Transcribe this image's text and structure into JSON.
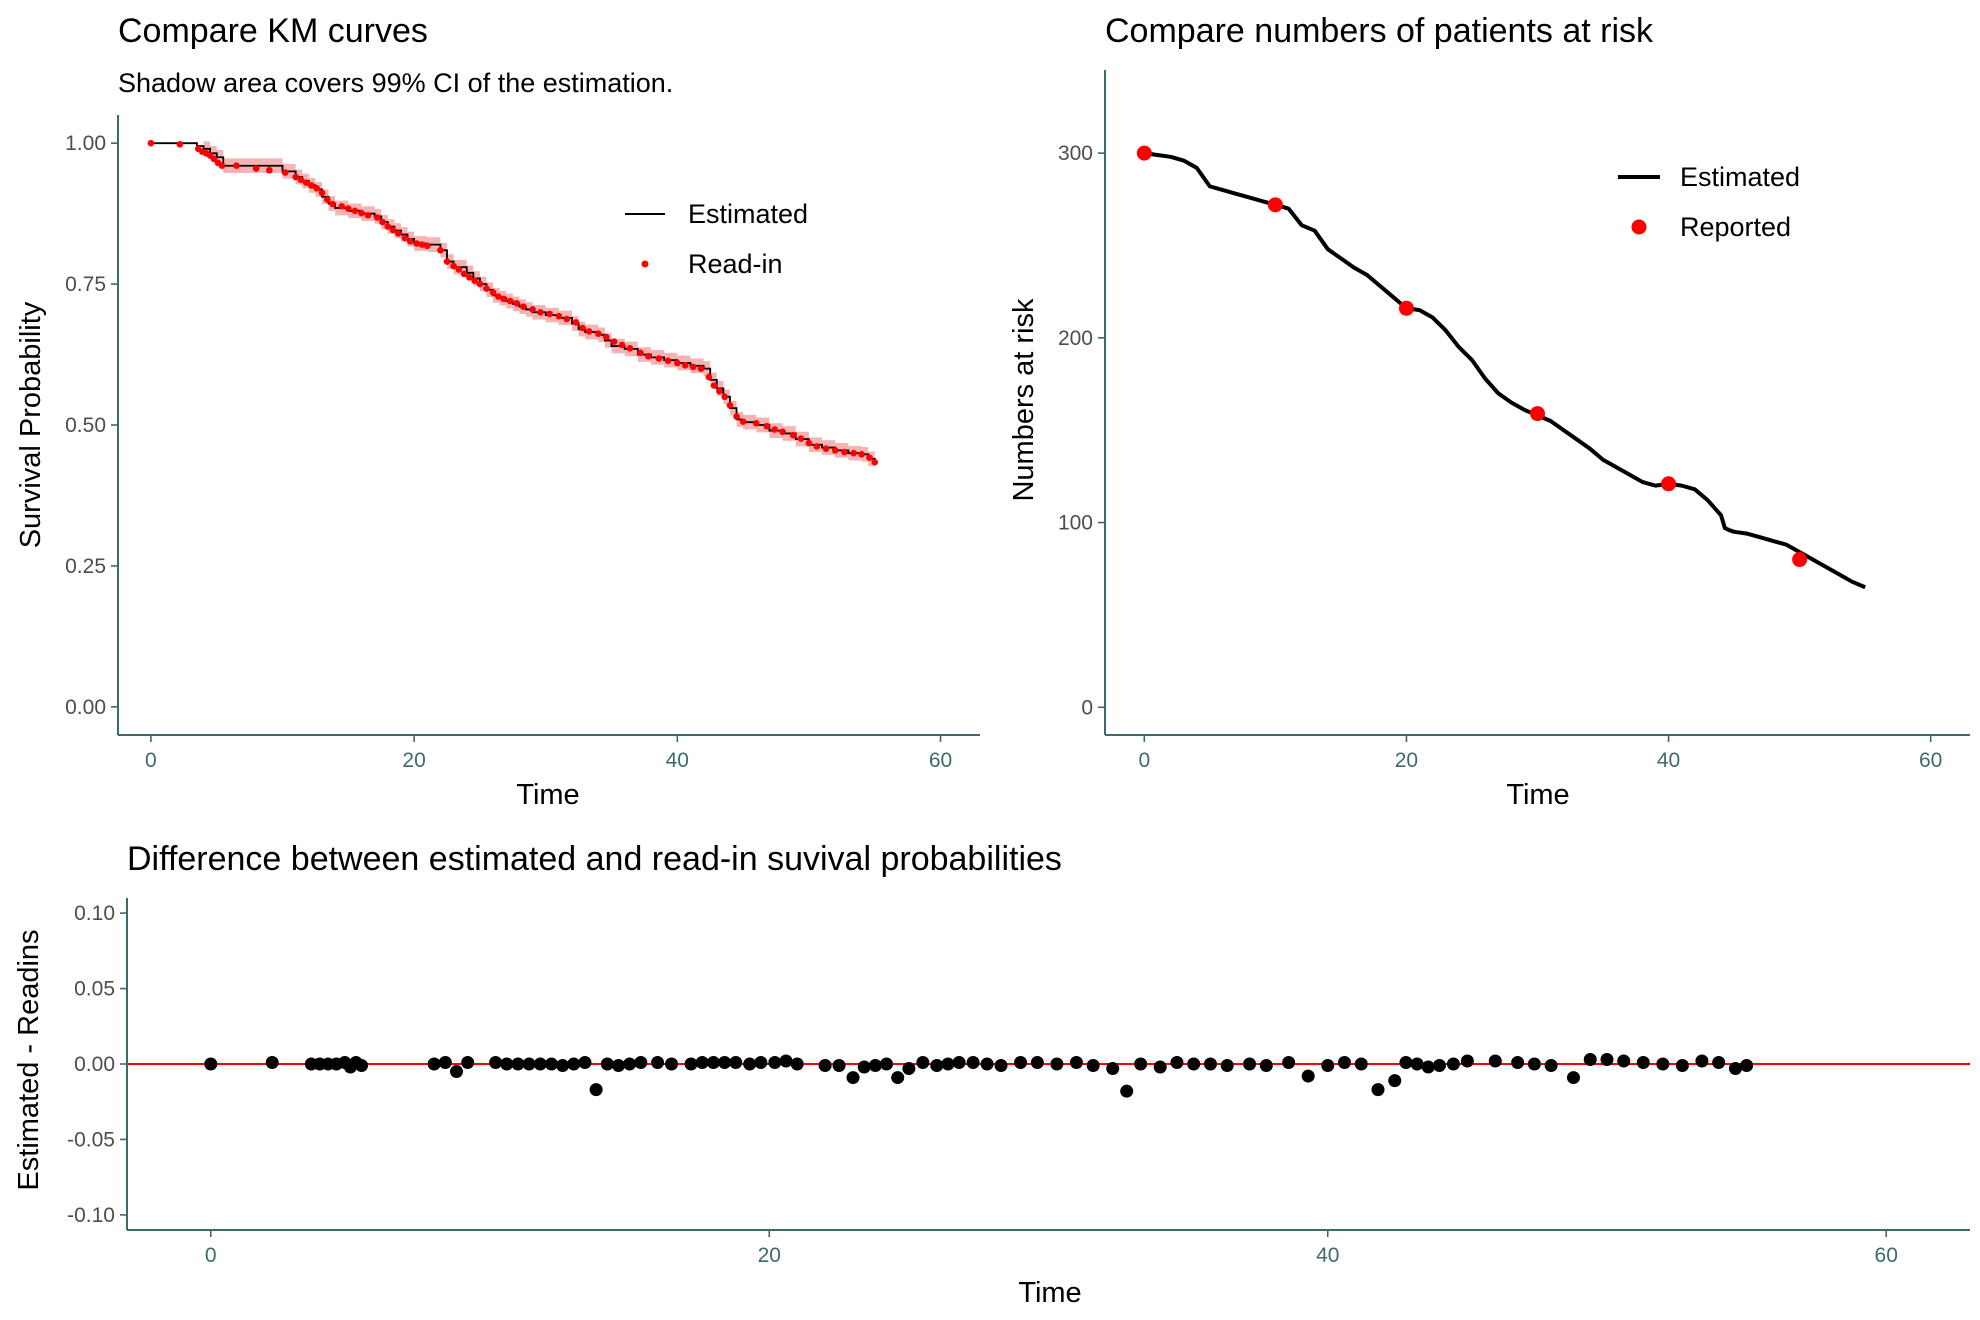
{
  "colors": {
    "estimated_line": "#000000",
    "readin_point": "#ff0000",
    "ci_band": "#f4a6a6",
    "zero_line": "#ff0000",
    "axis": "#3d6b6b"
  },
  "chart_data": [
    {
      "type": "line",
      "title": "Compare KM curves",
      "subtitle": "Shadow area covers 99% CI of the estimation.",
      "xlabel": "Time",
      "ylabel": "Survival Probability",
      "xlim": [
        -2.5,
        63
      ],
      "ylim": [
        -0.05,
        1.05
      ],
      "xticks": [
        0,
        20,
        40,
        60
      ],
      "yticks": [
        0.0,
        0.25,
        0.5,
        0.75,
        1.0
      ],
      "ytick_labels": [
        "0.00",
        "0.25",
        "0.50",
        "0.75",
        "1.00"
      ],
      "legend_position": "top-right",
      "grid": false,
      "series": [
        {
          "name": "Estimated",
          "kind": "step-line",
          "x": [
            0,
            3.5,
            4,
            4.5,
            5,
            5.5,
            8,
            10,
            11,
            11.5,
            12,
            12.5,
            13,
            13.5,
            14,
            15,
            16,
            17,
            17.5,
            18,
            18.5,
            19,
            19.5,
            20,
            21,
            22,
            22.5,
            23,
            24,
            24.5,
            25,
            25.5,
            26,
            26.5,
            27,
            27.5,
            28,
            28.5,
            29,
            30,
            31,
            32,
            32.5,
            33,
            34,
            34.5,
            35,
            36,
            37,
            38,
            39,
            40,
            41,
            42,
            42.5,
            43,
            43.5,
            44,
            44.5,
            45,
            46,
            47,
            48,
            49,
            50,
            51,
            52,
            53,
            54,
            54.5,
            55
          ],
          "y": [
            1.0,
            0.995,
            0.99,
            0.982,
            0.975,
            0.96,
            0.96,
            0.95,
            0.94,
            0.933,
            0.925,
            0.918,
            0.905,
            0.893,
            0.885,
            0.88,
            0.875,
            0.87,
            0.86,
            0.852,
            0.845,
            0.838,
            0.83,
            0.822,
            0.82,
            0.81,
            0.79,
            0.78,
            0.77,
            0.76,
            0.75,
            0.74,
            0.73,
            0.725,
            0.72,
            0.715,
            0.71,
            0.705,
            0.7,
            0.695,
            0.69,
            0.68,
            0.67,
            0.665,
            0.66,
            0.65,
            0.64,
            0.635,
            0.625,
            0.62,
            0.615,
            0.61,
            0.605,
            0.6,
            0.58,
            0.565,
            0.55,
            0.53,
            0.51,
            0.505,
            0.5,
            0.49,
            0.485,
            0.475,
            0.465,
            0.46,
            0.455,
            0.45,
            0.448,
            0.44,
            0.432
          ]
        },
        {
          "name": "Read-in",
          "kind": "points",
          "x": [
            0,
            2.2,
            3.6,
            3.9,
            4.2,
            4.5,
            4.8,
            5.1,
            5.4,
            6.5,
            8,
            9,
            10.2,
            11.0,
            11.4,
            11.8,
            12.2,
            12.6,
            13.0,
            13.4,
            13.8,
            14.5,
            15.0,
            15.5,
            16.0,
            16.5,
            17.2,
            17.6,
            18.0,
            18.4,
            18.8,
            19.3,
            19.7,
            20.2,
            20.6,
            21.0,
            22.0,
            22.5,
            23.0,
            23.4,
            23.8,
            24.2,
            24.6,
            25.0,
            25.5,
            26.0,
            26.4,
            26.8,
            27.3,
            27.8,
            28.3,
            29.0,
            29.6,
            30.3,
            31.0,
            31.6,
            32.3,
            32.8,
            33.3,
            34.0,
            34.6,
            35.2,
            35.8,
            36.4,
            37.2,
            37.8,
            38.6,
            39.3,
            40.0,
            40.6,
            41.2,
            41.8,
            42.4,
            42.8,
            43.2,
            43.6,
            44.0,
            44.5,
            45.0,
            46.0,
            46.8,
            47.4,
            48.0,
            48.8,
            49.4,
            50.0,
            50.6,
            51.3,
            52.0,
            52.7,
            53.4,
            54.0,
            54.6,
            55.0
          ],
          "y": [
            1.0,
            0.998,
            0.99,
            0.985,
            0.982,
            0.978,
            0.972,
            0.965,
            0.96,
            0.96,
            0.955,
            0.952,
            0.948,
            0.94,
            0.935,
            0.93,
            0.925,
            0.92,
            0.912,
            0.9,
            0.892,
            0.888,
            0.884,
            0.88,
            0.876,
            0.872,
            0.868,
            0.86,
            0.852,
            0.846,
            0.84,
            0.832,
            0.826,
            0.822,
            0.82,
            0.818,
            0.81,
            0.79,
            0.782,
            0.776,
            0.768,
            0.762,
            0.756,
            0.75,
            0.742,
            0.735,
            0.728,
            0.724,
            0.72,
            0.716,
            0.71,
            0.705,
            0.7,
            0.697,
            0.693,
            0.688,
            0.682,
            0.672,
            0.666,
            0.662,
            0.656,
            0.648,
            0.642,
            0.636,
            0.628,
            0.622,
            0.618,
            0.614,
            0.61,
            0.606,
            0.603,
            0.6,
            0.585,
            0.57,
            0.56,
            0.55,
            0.535,
            0.515,
            0.506,
            0.503,
            0.498,
            0.492,
            0.488,
            0.482,
            0.476,
            0.468,
            0.462,
            0.458,
            0.455,
            0.452,
            0.45,
            0.448,
            0.442,
            0.434
          ]
        }
      ],
      "ci_band": {
        "x": [
          4,
          10,
          15,
          20,
          25,
          30,
          35,
          40,
          42,
          45,
          50,
          55
        ],
        "halfwidth": 0.013
      }
    },
    {
      "type": "line",
      "title": "Compare numbers of patients at risk",
      "xlabel": "Time",
      "ylabel": "Numbers at risk",
      "xlim": [
        -3,
        63
      ],
      "ylim": [
        -15,
        345
      ],
      "xticks": [
        0,
        20,
        40,
        60
      ],
      "yticks": [
        0,
        100,
        200,
        300
      ],
      "ytick_labels": [
        "0",
        "100",
        "200",
        "300"
      ],
      "legend_position": "top-right",
      "grid": false,
      "series": [
        {
          "name": "Estimated",
          "kind": "line",
          "x": [
            0,
            1,
            2,
            3,
            4,
            5,
            6,
            7,
            8,
            9,
            10,
            11,
            12,
            13,
            14,
            15,
            16,
            17,
            18,
            19,
            20,
            21,
            22,
            23,
            24,
            25,
            26,
            27,
            28,
            29,
            30,
            31,
            32,
            33,
            34,
            35,
            36,
            37,
            38,
            39,
            40,
            41,
            42,
            43,
            44,
            44.3,
            44.6,
            45,
            46,
            47,
            48,
            49,
            50,
            51,
            52,
            53,
            54,
            55
          ],
          "y": [
            300,
            299,
            298,
            296,
            292,
            282,
            280,
            278,
            276,
            274,
            272,
            270,
            261,
            258,
            248,
            243,
            238,
            234,
            228,
            222,
            216,
            215,
            211,
            204,
            195,
            188,
            178,
            170,
            165,
            161,
            158,
            155,
            150,
            145,
            140,
            134,
            130,
            126,
            122,
            120,
            121,
            120,
            118,
            112,
            104,
            97,
            96,
            95,
            94,
            92,
            90,
            88,
            84,
            80,
            76,
            72,
            68,
            65
          ]
        },
        {
          "name": "Reported",
          "kind": "points",
          "x": [
            0,
            10,
            20,
            30,
            40,
            50
          ],
          "y": [
            300,
            272,
            216,
            159,
            121,
            80
          ]
        }
      ]
    },
    {
      "type": "scatter",
      "title": "Difference between estimated and read-in suvival probabilities",
      "xlabel": "Time",
      "ylabel": "Estimated - Readins",
      "xlim": [
        -3,
        63
      ],
      "ylim": [
        -0.11,
        0.11
      ],
      "xticks": [
        0,
        20,
        40,
        60
      ],
      "yticks": [
        -0.1,
        -0.05,
        0.0,
        0.05,
        0.1
      ],
      "ytick_labels": [
        "-0.10",
        "-0.05",
        "0.00",
        "0.05",
        "0.10"
      ],
      "reference_line_y": 0,
      "grid": false,
      "series": [
        {
          "kind": "points",
          "x": [
            0,
            2.2,
            3.6,
            3.9,
            4.2,
            4.5,
            4.8,
            5.0,
            5.2,
            5.4,
            8.0,
            8.4,
            8.8,
            9.2,
            10.2,
            10.6,
            11.0,
            11.4,
            11.8,
            12.2,
            12.6,
            13.0,
            13.4,
            13.8,
            14.2,
            14.6,
            15.0,
            15.4,
            16.0,
            16.5,
            17.2,
            17.6,
            18.0,
            18.4,
            18.8,
            19.3,
            19.7,
            20.2,
            20.6,
            21.0,
            22.0,
            22.5,
            23.0,
            23.4,
            23.8,
            24.2,
            24.6,
            25.0,
            25.5,
            26.0,
            26.4,
            26.8,
            27.3,
            27.8,
            28.3,
            29.0,
            29.6,
            30.3,
            31.0,
            31.6,
            32.3,
            32.8,
            33.3,
            34.0,
            34.6,
            35.2,
            35.8,
            36.4,
            37.2,
            37.8,
            38.6,
            39.3,
            40.0,
            40.6,
            41.2,
            41.8,
            42.4,
            42.8,
            43.2,
            43.6,
            44.0,
            44.5,
            45.0,
            46.0,
            46.8,
            47.4,
            48.0,
            48.8,
            49.4,
            50.0,
            50.6,
            51.3,
            52.0,
            52.7,
            53.4,
            54.0,
            54.6,
            55.0
          ],
          "y": [
            0.0,
            0.001,
            0.0,
            0.0,
            0.0,
            0.0,
            0.001,
            -0.002,
            0.001,
            -0.001,
            0.0,
            0.001,
            -0.005,
            0.001,
            0.001,
            0.0,
            0.0,
            0.0,
            0.0,
            0.0,
            -0.001,
            0.0,
            0.001,
            -0.017,
            0.0,
            -0.001,
            0.0,
            0.001,
            0.001,
            0.0,
            0.0,
            0.001,
            0.001,
            0.001,
            0.001,
            0.0,
            0.001,
            0.001,
            0.002,
            0.0,
            -0.001,
            -0.001,
            -0.009,
            -0.002,
            -0.001,
            0.0,
            -0.009,
            -0.003,
            0.001,
            -0.001,
            0.0,
            0.001,
            0.001,
            0.0,
            -0.001,
            0.001,
            0.001,
            0.0,
            0.001,
            -0.001,
            -0.003,
            -0.018,
            0.0,
            -0.002,
            0.001,
            0.0,
            0.0,
            -0.001,
            0.0,
            -0.001,
            0.001,
            -0.008,
            -0.001,
            0.001,
            0.0,
            -0.017,
            -0.011,
            0.001,
            0.0,
            -0.002,
            -0.001,
            0.0,
            0.002,
            0.002,
            0.001,
            0.0,
            -0.001,
            -0.009,
            0.003,
            0.003,
            0.002,
            0.001,
            0.0,
            -0.001,
            0.002,
            0.001,
            -0.003,
            -0.001
          ]
        }
      ]
    }
  ]
}
